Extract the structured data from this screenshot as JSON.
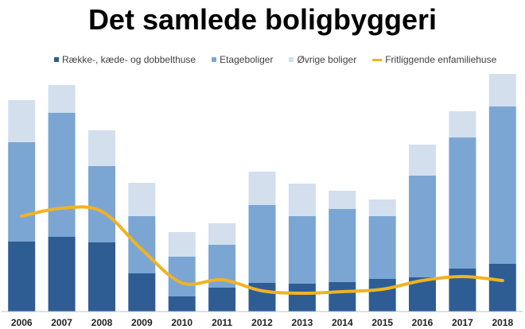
{
  "chart_data": {
    "type": "bar",
    "title": "Det samlede boligbyggeri",
    "categories": [
      "2006",
      "2007",
      "2008",
      "2009",
      "2010",
      "2011",
      "2012",
      "2013",
      "2014",
      "2015",
      "2016",
      "2017",
      "2018"
    ],
    "stacked": true,
    "series": [
      {
        "name": "Række-, kæde- og dobbelthuse",
        "type": "bar",
        "color": "#2e5d94",
        "values": [
          88,
          94,
          87,
          48,
          19,
          30,
          36,
          35,
          37,
          41,
          43,
          54,
          60
        ]
      },
      {
        "name": "Etageboliger",
        "type": "bar",
        "color": "#7ba6d3",
        "values": [
          125,
          156,
          96,
          72,
          50,
          54,
          98,
          85,
          92,
          79,
          128,
          165,
          198
        ]
      },
      {
        "name": "Øvrige boliger",
        "type": "bar",
        "color": "#d3dfed",
        "values": [
          53,
          35,
          45,
          42,
          31,
          27,
          42,
          41,
          23,
          21,
          39,
          33,
          41
        ]
      },
      {
        "name": "Fritliggende enfamiliehuse",
        "type": "line",
        "color": "#f0b323",
        "values": [
          120,
          130,
          126,
          78,
          36,
          40,
          26,
          23,
          25,
          28,
          39,
          44,
          39
        ]
      }
    ],
    "ylim": [
      0,
      300
    ],
    "grid": false,
    "legend": "top"
  }
}
